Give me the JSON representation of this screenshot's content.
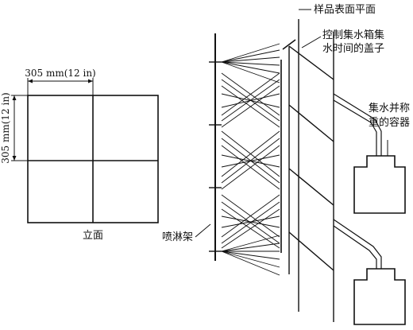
{
  "labels": {
    "width_dim": "305 mm(12 in)",
    "height_dim": "305 mm(12 in)",
    "elevation": "立面",
    "sample_plane": "样品表面平面",
    "cover_line1": "控制集水箱集",
    "cover_line2": "水时间的盖子",
    "container_line1": "集水并称",
    "container_line2": "重的容器",
    "spray_rack": "喷淋架"
  }
}
